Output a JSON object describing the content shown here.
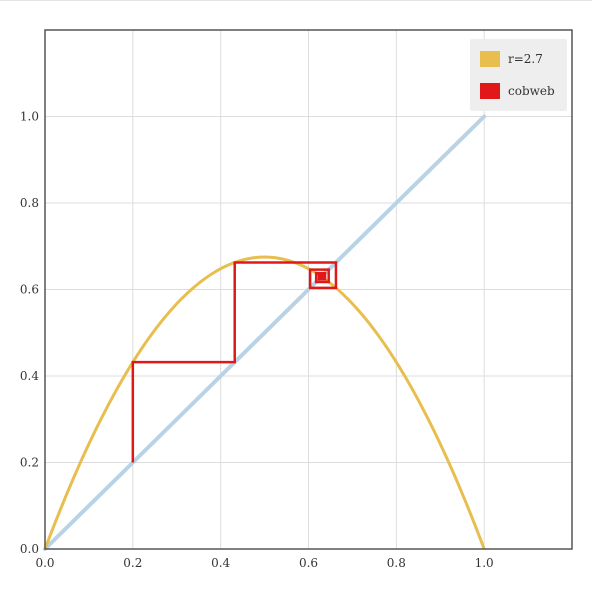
{
  "chart_data": {
    "type": "line",
    "title": "",
    "xlabel": "",
    "ylabel": "",
    "xlim": [
      0.0,
      1.2
    ],
    "ylim": [
      0.0,
      1.2
    ],
    "grid": true,
    "x_ticks": [
      "0.0",
      "0.2",
      "0.4",
      "0.6",
      "0.8",
      "1.0"
    ],
    "y_ticks": [
      "0.0",
      "0.2",
      "0.4",
      "0.6",
      "0.8",
      "1.0"
    ],
    "legend_position": "top-right",
    "series": [
      {
        "name": "r=2.7",
        "kind": "logistic_map",
        "r": 2.7,
        "x_range": [
          0.0,
          1.0
        ],
        "color": "#e8be4e"
      },
      {
        "name": "cobweb",
        "kind": "cobweb",
        "r": 2.7,
        "x0": 0.2,
        "iterations": 12,
        "color": "#e01818"
      },
      {
        "name": "",
        "kind": "identity",
        "points": [
          [
            0.0,
            0.0
          ],
          [
            1.0,
            1.0
          ]
        ],
        "color": "#b9d3e6"
      }
    ]
  }
}
